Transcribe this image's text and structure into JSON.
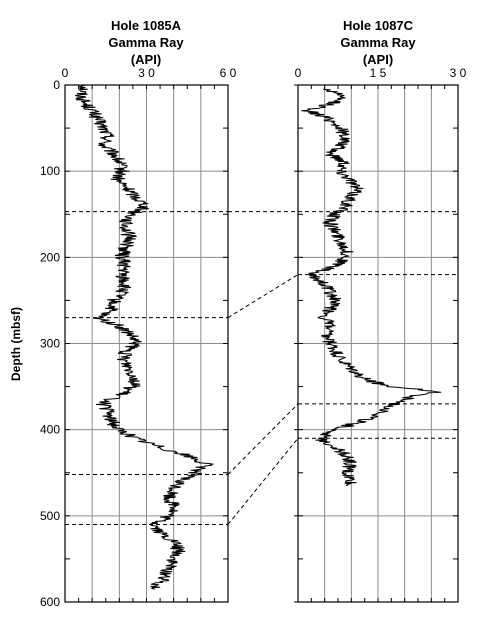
{
  "chart_data": [
    {
      "type": "line",
      "title_lines": [
        "Hole 1085A",
        "Gamma Ray",
        "(API)"
      ],
      "xlim": [
        0,
        60
      ],
      "x_ticks": [
        0,
        30,
        60
      ],
      "x_tick_labels": [
        "0",
        "3 0",
        "6 0"
      ],
      "ylim": [
        0,
        600
      ],
      "y_ticks": [
        0,
        100,
        200,
        300,
        400,
        500,
        600
      ],
      "y_tick_labels": [
        "0",
        "100",
        "200",
        "300",
        "400",
        "500",
        "600"
      ],
      "ylabel": "Depth (mbsf)",
      "y_inverted": true,
      "vertical_grid_x": [
        10,
        20,
        30,
        40,
        50
      ],
      "marker_depths": [
        147,
        270,
        452,
        510
      ],
      "series": [
        {
          "depth": [
            0,
            10,
            20,
            30,
            40,
            50,
            60,
            70,
            80,
            90,
            100,
            110,
            120,
            130,
            140,
            150,
            160,
            170,
            180,
            190,
            200,
            210,
            220,
            230,
            240,
            250,
            260,
            270,
            280,
            290,
            300,
            310,
            320,
            330,
            340,
            350,
            360,
            370,
            380,
            390,
            400,
            410,
            420,
            430,
            440,
            450,
            460,
            470,
            480,
            490,
            500,
            510,
            520,
            530,
            540,
            550,
            560,
            570,
            580,
            585
          ],
          "value": [
            8,
            6,
            7,
            10,
            12,
            14,
            16,
            14,
            18,
            20,
            21,
            19,
            23,
            26,
            30,
            25,
            22,
            23,
            24,
            22,
            21,
            22,
            21,
            22,
            21,
            18,
            17,
            12,
            20,
            24,
            26,
            22,
            22,
            24,
            26,
            25,
            20,
            14,
            16,
            17,
            20,
            26,
            35,
            45,
            52,
            48,
            42,
            40,
            38,
            41,
            38,
            33,
            35,
            40,
            42,
            40,
            38,
            37,
            34,
            33
          ]
        }
      ]
    },
    {
      "type": "line",
      "title_lines": [
        "Hole 1087C",
        "Gamma Ray",
        "(API)"
      ],
      "xlim": [
        0,
        30
      ],
      "x_ticks": [
        0,
        15,
        30
      ],
      "x_tick_labels": [
        "0",
        "1 5",
        "3 0"
      ],
      "ylim": [
        0,
        600
      ],
      "y_ticks": [
        0,
        100,
        200,
        300,
        400,
        500,
        600
      ],
      "y_inverted": true,
      "vertical_grid_x": [
        5,
        10,
        15,
        20,
        25
      ],
      "marker_depths": [
        147,
        220,
        370,
        410
      ],
      "series": [
        {
          "depth": [
            5,
            10,
            20,
            30,
            40,
            50,
            60,
            70,
            80,
            90,
            100,
            110,
            120,
            130,
            140,
            150,
            160,
            170,
            180,
            190,
            200,
            210,
            220,
            230,
            240,
            250,
            260,
            270,
            280,
            290,
            300,
            310,
            320,
            330,
            340,
            350,
            356,
            360,
            370,
            380,
            390,
            400,
            410,
            420,
            430,
            440,
            450,
            460,
            465
          ],
          "value": [
            5,
            8,
            7,
            2,
            6,
            8,
            9,
            8,
            6,
            9,
            8,
            10,
            11,
            10,
            9,
            7,
            6,
            7,
            8,
            9,
            9,
            7,
            2,
            5,
            6,
            7,
            6,
            5,
            6,
            5,
            6,
            7,
            8,
            10,
            12,
            17,
            27,
            22,
            18,
            16,
            12,
            7,
            4,
            7,
            9,
            10,
            9,
            10,
            9
          ]
        }
      ]
    }
  ]
}
